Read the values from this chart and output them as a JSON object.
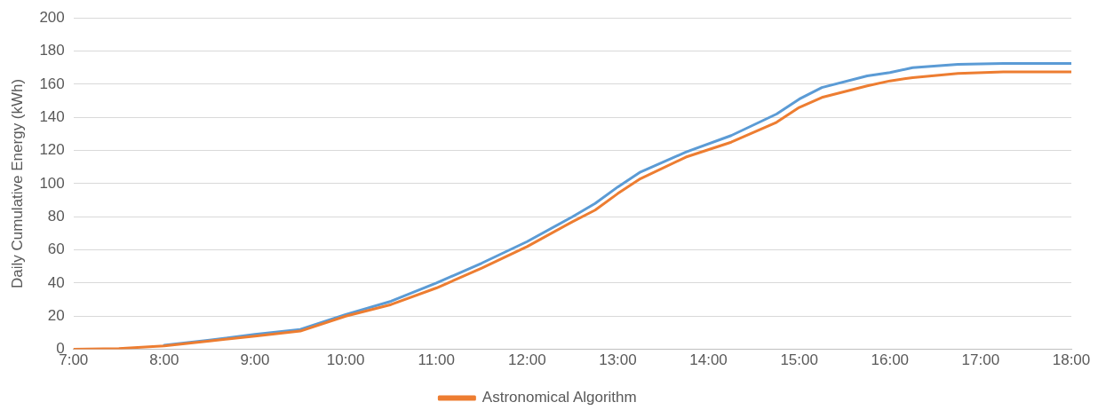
{
  "chart_data": {
    "type": "line",
    "ylabel": "Daily Cumulative Energy (kWh)",
    "xlim": [
      7,
      18
    ],
    "ylim": [
      0,
      200
    ],
    "xticks": [
      {
        "value": 7,
        "label": "7:00"
      },
      {
        "value": 8,
        "label": "8:00"
      },
      {
        "value": 9,
        "label": "9:00"
      },
      {
        "value": 10,
        "label": "10:00"
      },
      {
        "value": 11,
        "label": "11:00"
      },
      {
        "value": 12,
        "label": "12:00"
      },
      {
        "value": 13,
        "label": "13:00"
      },
      {
        "value": 14,
        "label": "14:00"
      },
      {
        "value": 15,
        "label": "15:00"
      },
      {
        "value": 16,
        "label": "16:00"
      },
      {
        "value": 17,
        "label": "17:00"
      },
      {
        "value": 18,
        "label": "18:00"
      }
    ],
    "yticks": [
      0,
      20,
      40,
      60,
      80,
      100,
      120,
      140,
      160,
      180,
      200
    ],
    "x": [
      7,
      7.5,
      8,
      8.5,
      9,
      9.5,
      10,
      10.5,
      11,
      11.5,
      12,
      12.5,
      12.75,
      13,
      13.25,
      13.75,
      14.25,
      14.75,
      15,
      15.25,
      15.75,
      16,
      16.25,
      16.75,
      17.25,
      18
    ],
    "series": [
      {
        "color": "#5b9bd5",
        "values": [
          null,
          null,
          2.5,
          5.5,
          9,
          12,
          21,
          29,
          40,
          52,
          65,
          80,
          88,
          98,
          107,
          119,
          129,
          142,
          151,
          158,
          165,
          167,
          170,
          172,
          172.5,
          172.5
        ]
      },
      {
        "name": "Astronomical Algorithm",
        "color": "#ed7d31",
        "values": [
          0,
          0.5,
          2,
          5,
          8,
          11,
          20,
          27,
          37,
          49,
          62,
          77,
          84,
          94,
          103,
          116,
          125,
          137,
          146,
          152,
          159,
          162,
          164,
          166.5,
          167.5,
          167.5
        ]
      }
    ],
    "grid": "y",
    "legend": "bottom",
    "marker": "none",
    "line_style": "solid"
  }
}
